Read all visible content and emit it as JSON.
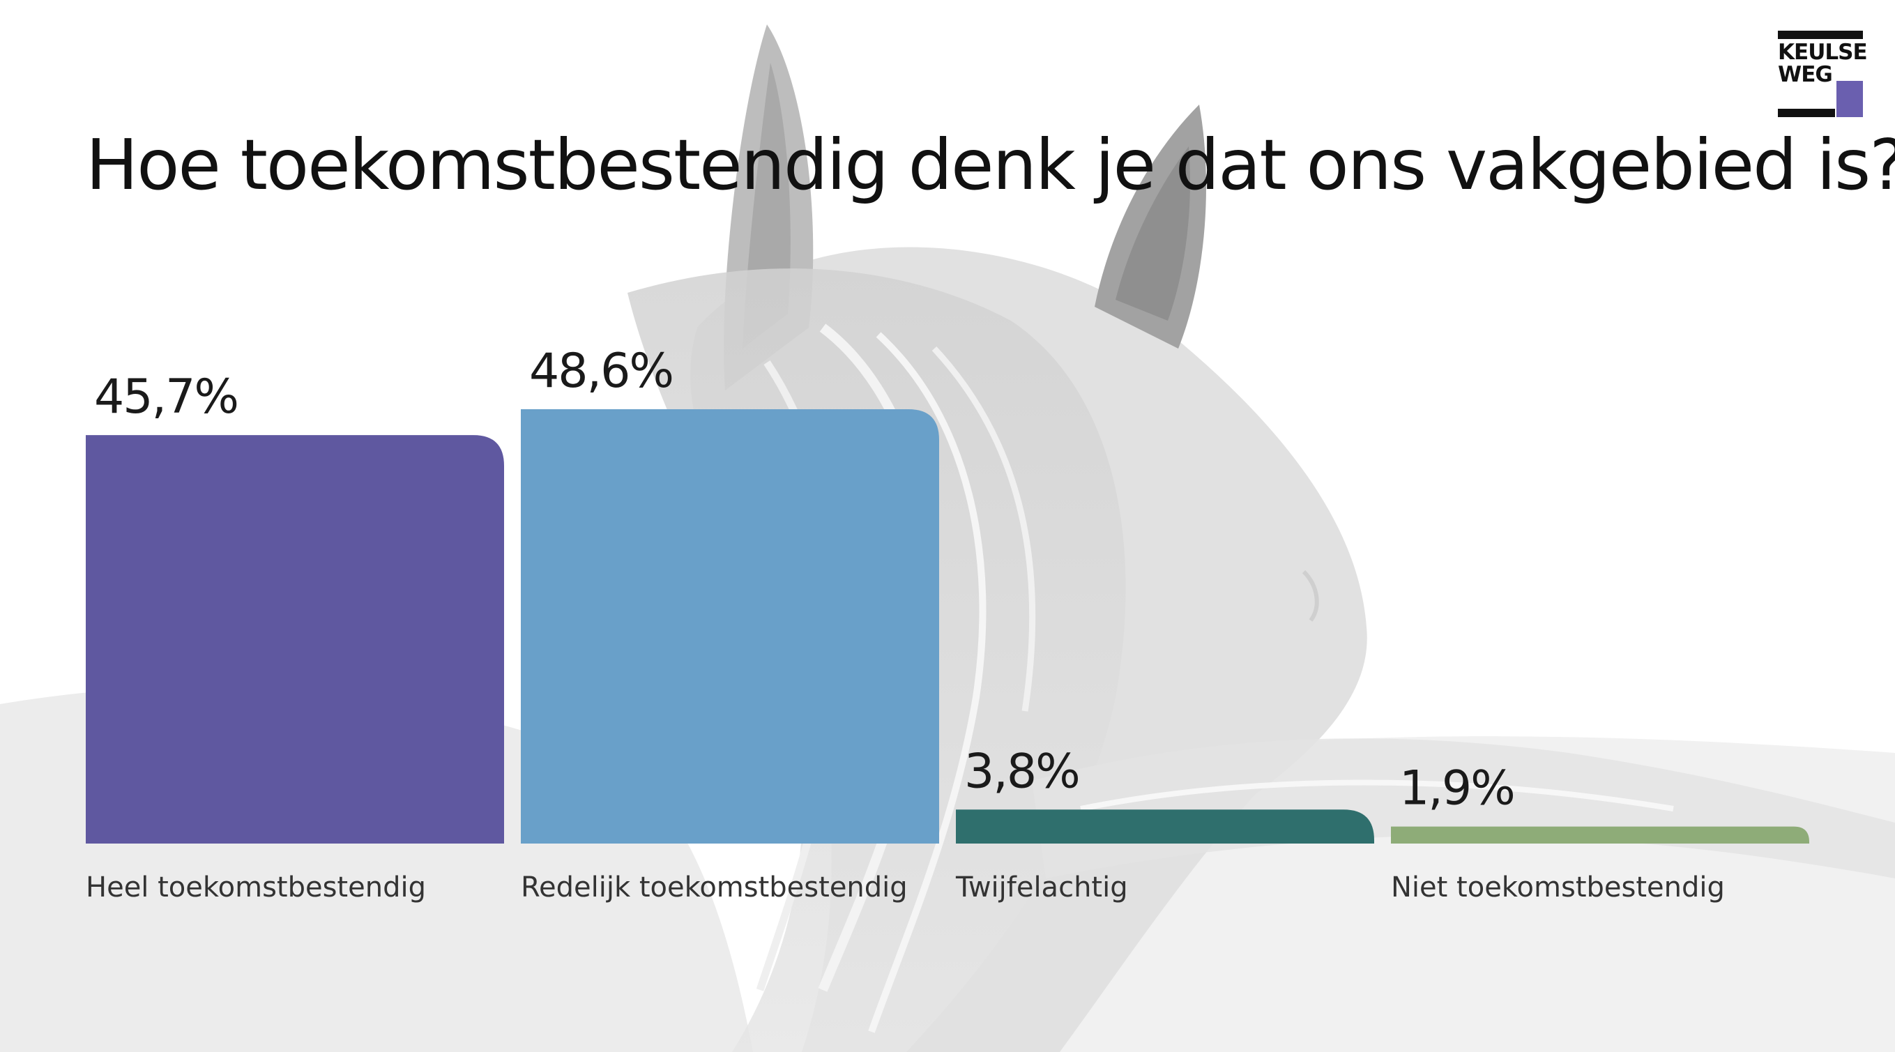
{
  "logo": {
    "line1": "KEULSE",
    "line2": "WEG",
    "accent_color": "#6a5faf"
  },
  "background": {
    "image": "grayscale white horse head photograph"
  },
  "chart_data": {
    "type": "bar",
    "title": "Hoe toekomstbestendig denk je dat ons vakgebied is?",
    "categories": [
      "Heel toekomstbestendig",
      "Redelijk toekomstbestendig",
      "Twijfelachtig",
      "Niet toekomstbestendig"
    ],
    "values": [
      45.7,
      48.6,
      3.8,
      1.9
    ],
    "value_labels": [
      "45,7%",
      "48,6%",
      "3,8%",
      "1,9%"
    ],
    "colors": [
      "#5f58a0",
      "#69a0c9",
      "#2f6f6d",
      "#8eac78"
    ],
    "unit": "%",
    "ylim": [
      0,
      48.6
    ],
    "grid": false,
    "legend": "none"
  }
}
